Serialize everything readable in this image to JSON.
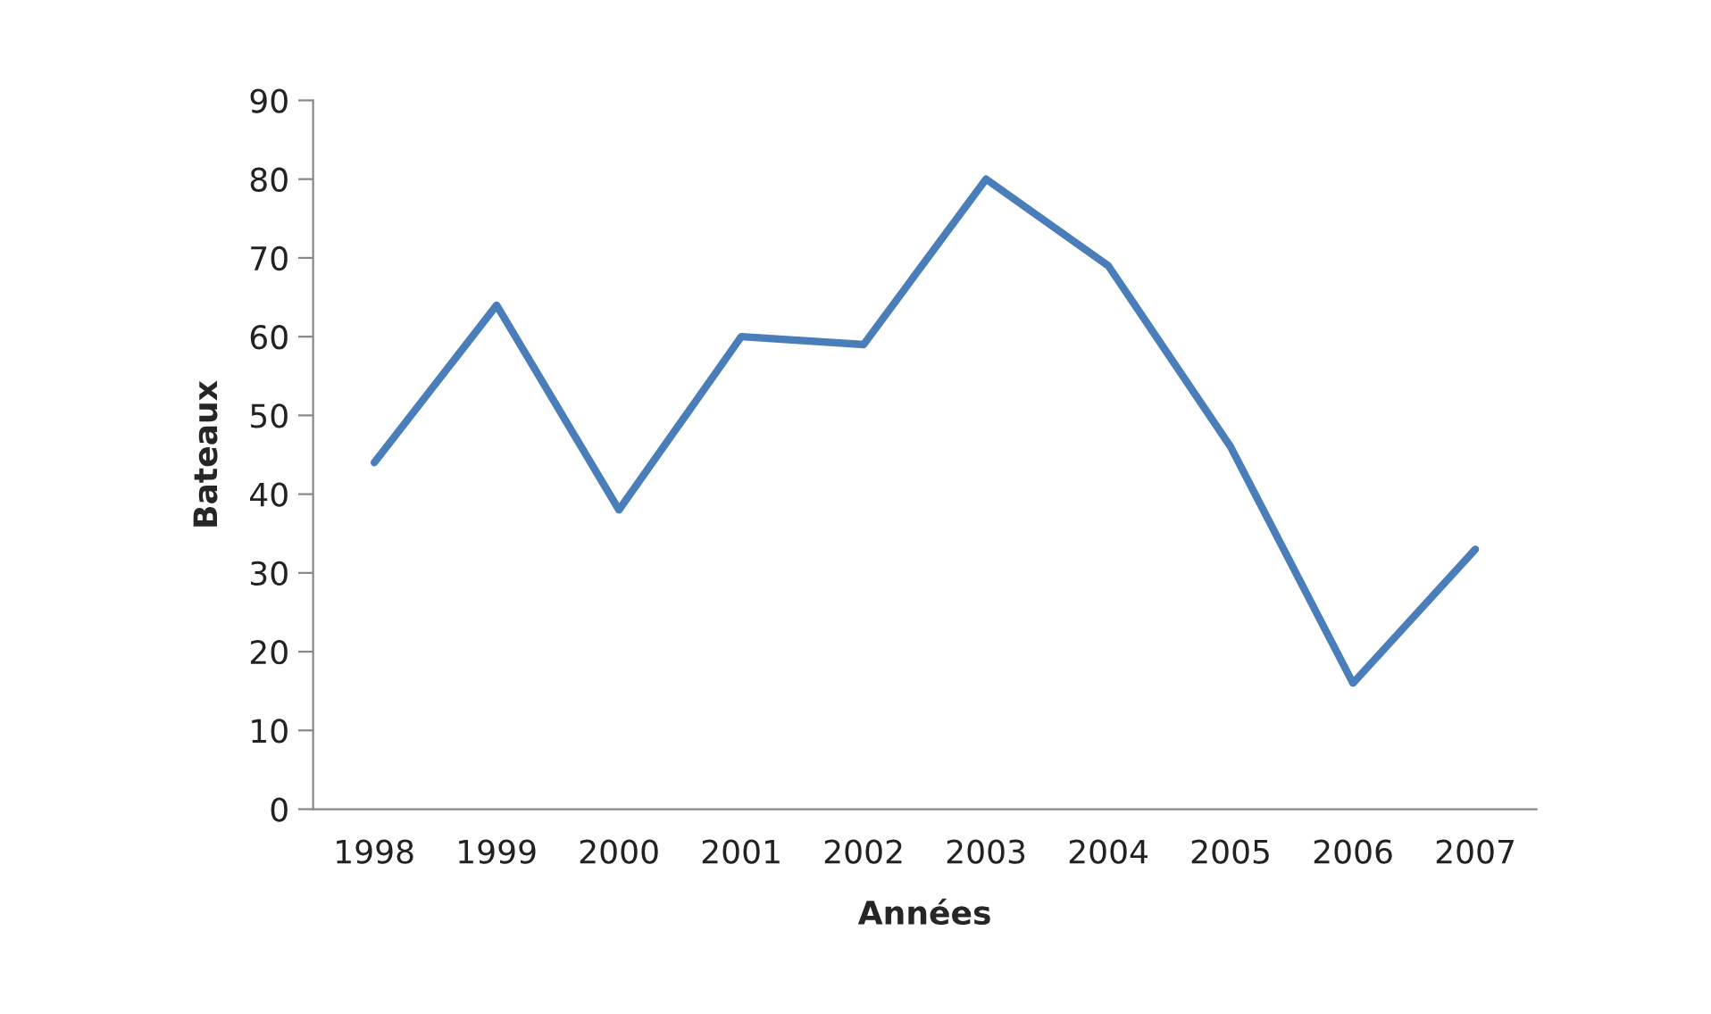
{
  "chart_data": {
    "type": "line",
    "xlabel": "Années",
    "ylabel": "Bateaux",
    "categories": [
      "1998",
      "1999",
      "2000",
      "2001",
      "2002",
      "2003",
      "2004",
      "2005",
      "2006",
      "2007"
    ],
    "series": [
      {
        "color": "#4a7ebb",
        "values": [
          44,
          64,
          38,
          60,
          59,
          80,
          69,
          46,
          16,
          33
        ]
      }
    ],
    "ylim": [
      0,
      90
    ],
    "yticks": [
      0,
      10,
      20,
      30,
      40,
      50,
      60,
      70,
      80,
      90
    ],
    "grid": false,
    "legend": false,
    "marker": "none",
    "line_style": "solid"
  }
}
